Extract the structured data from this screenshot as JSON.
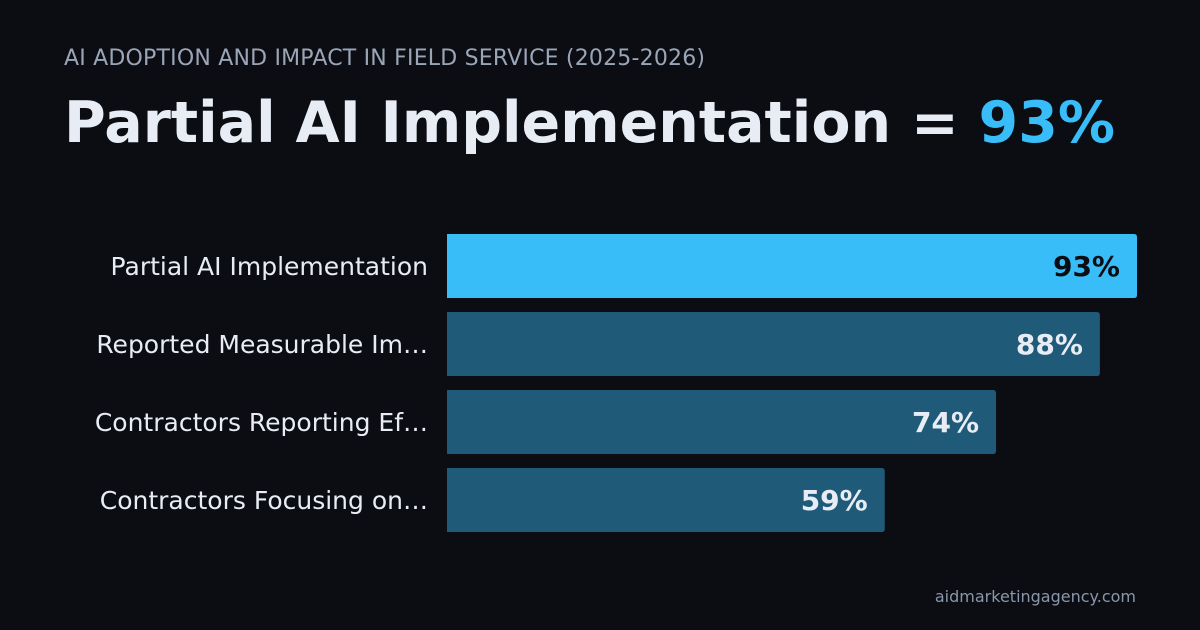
{
  "header": {
    "subtitle": "AI ADOPTION AND IMPACT IN FIELD SERVICE (2025-2026)",
    "headline_label": "Partial AI Implementation",
    "headline_equals": " = ",
    "headline_value": "93%"
  },
  "footer": {
    "source": "aidmarketingagency.com"
  },
  "colors": {
    "background": "#0b0d12",
    "highlight_bar": "#38bdf8",
    "bar": "#1f5a78",
    "highlight_value_text": "#0b0d12",
    "value_text": "#e8edf5",
    "category_text": "#e8edf5"
  },
  "chart_data": {
    "type": "bar",
    "orientation": "horizontal",
    "categories": [
      "Partial AI Implementation",
      "Reported Measurable Im…",
      "Contractors Reporting Ef…",
      "Contractors Focusing on…"
    ],
    "values": [
      93,
      88,
      74,
      59
    ],
    "value_labels": [
      "93%",
      "88%",
      "74%",
      "59%"
    ],
    "unit": "%",
    "highlight_index": 0,
    "xlim": [
      0,
      93
    ],
    "grid": false,
    "legend": "none"
  }
}
